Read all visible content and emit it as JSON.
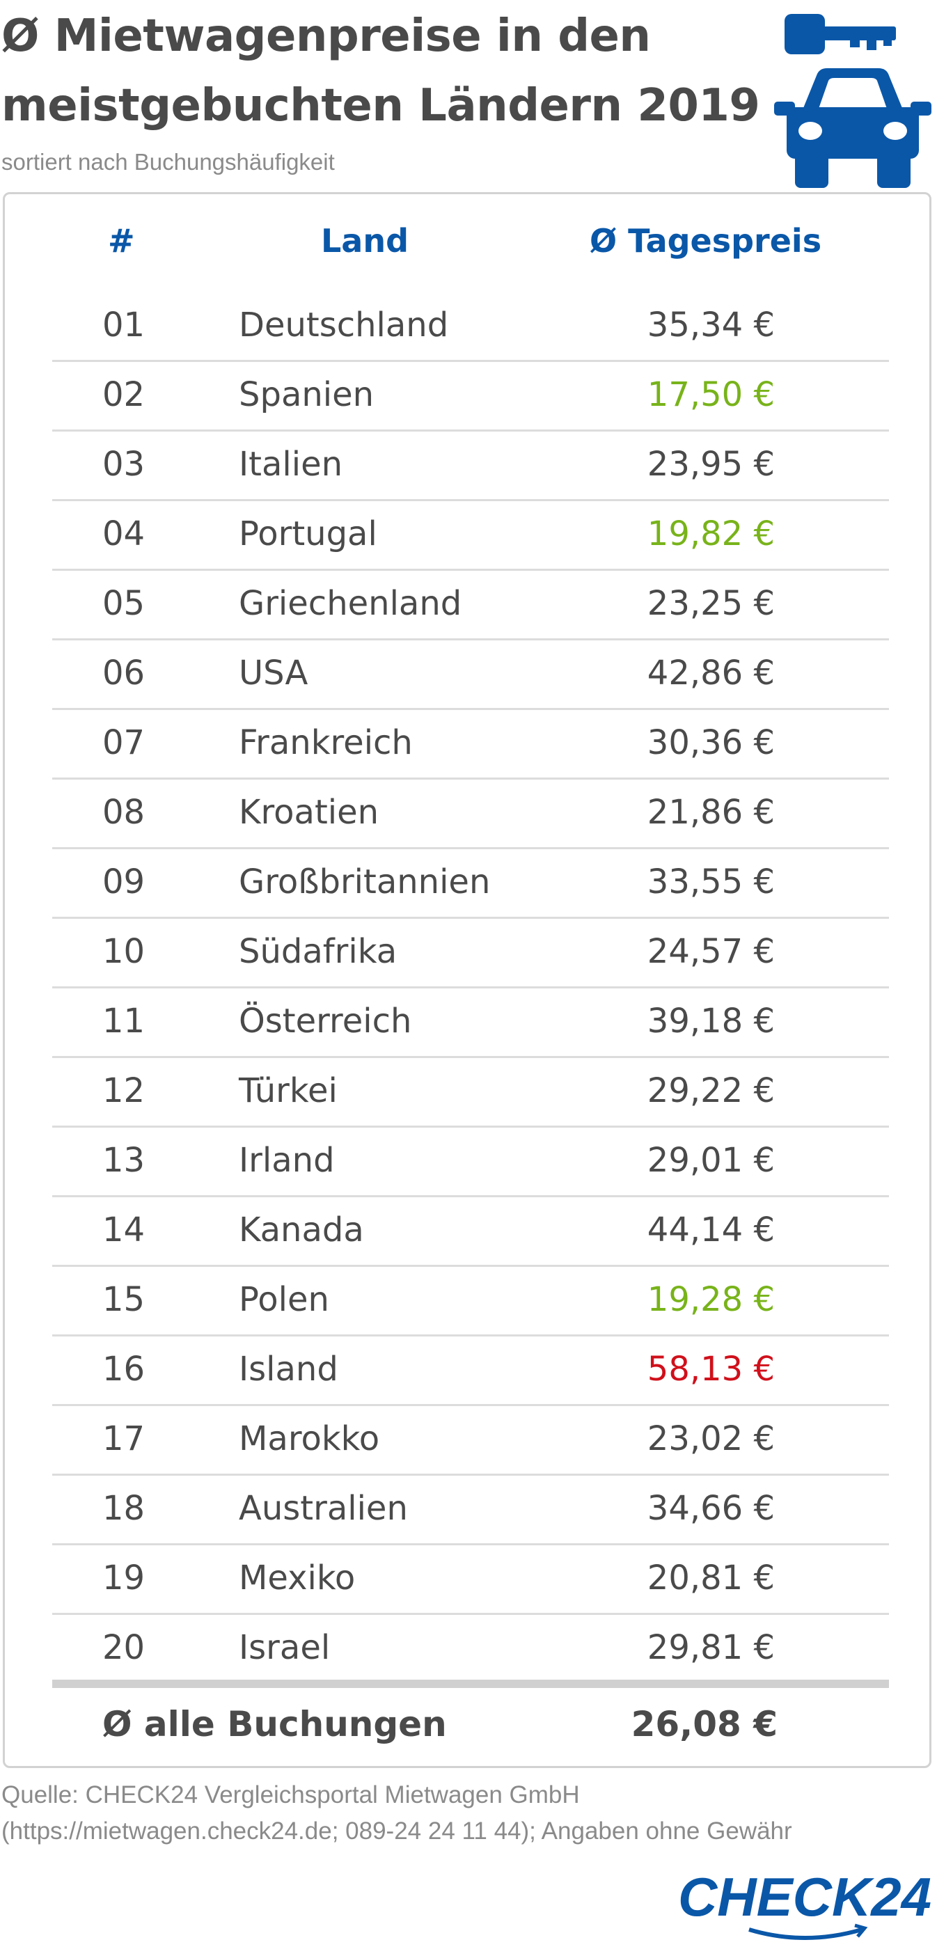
{
  "title_line1": "Ø Mietwagenpreise in den",
  "title_line2": "meistgebuchten Ländern 2019",
  "subtitle": "sortiert nach Buchungshäufigkeit",
  "icons": [
    "key-icon",
    "car-icon"
  ],
  "colors": {
    "accent": "#0a57a8",
    "cheap": "#78b31a",
    "expensive": "#d0101b",
    "text": "#4a4a4a"
  },
  "table": {
    "headers": {
      "num": "#",
      "land": "Land",
      "price": "Ø Tagespreis"
    },
    "rows": [
      {
        "num": "01",
        "land": "Deutschland",
        "price": "35,34 €",
        "highlight": "none"
      },
      {
        "num": "02",
        "land": "Spanien",
        "price": "17,50 €",
        "highlight": "cheap"
      },
      {
        "num": "03",
        "land": "Italien",
        "price": "23,95 €",
        "highlight": "none"
      },
      {
        "num": "04",
        "land": "Portugal",
        "price": "19,82 €",
        "highlight": "cheap"
      },
      {
        "num": "05",
        "land": "Griechenland",
        "price": "23,25 €",
        "highlight": "none"
      },
      {
        "num": "06",
        "land": "USA",
        "price": "42,86 €",
        "highlight": "none"
      },
      {
        "num": "07",
        "land": "Frankreich",
        "price": "30,36 €",
        "highlight": "none"
      },
      {
        "num": "08",
        "land": "Kroatien",
        "price": "21,86 €",
        "highlight": "none"
      },
      {
        "num": "09",
        "land": "Großbritannien",
        "price": "33,55 €",
        "highlight": "none"
      },
      {
        "num": "10",
        "land": "Südafrika",
        "price": "24,57 €",
        "highlight": "none"
      },
      {
        "num": "11",
        "land": "Österreich",
        "price": "39,18 €",
        "highlight": "none"
      },
      {
        "num": "12",
        "land": "Türkei",
        "price": "29,22 €",
        "highlight": "none"
      },
      {
        "num": "13",
        "land": "Irland",
        "price": "29,01 €",
        "highlight": "none"
      },
      {
        "num": "14",
        "land": "Kanada",
        "price": "44,14 €",
        "highlight": "none"
      },
      {
        "num": "15",
        "land": "Polen",
        "price": "19,28 €",
        "highlight": "cheap"
      },
      {
        "num": "16",
        "land": "Island",
        "price": "58,13 €",
        "highlight": "expensive"
      },
      {
        "num": "17",
        "land": "Marokko",
        "price": "23,02 €",
        "highlight": "none"
      },
      {
        "num": "18",
        "land": "Australien",
        "price": "34,66 €",
        "highlight": "none"
      },
      {
        "num": "19",
        "land": "Mexiko",
        "price": "20,81 €",
        "highlight": "none"
      },
      {
        "num": "20",
        "land": "Israel",
        "price": "29,81 €",
        "highlight": "none"
      }
    ],
    "total": {
      "label": "Ø alle Buchungen",
      "price": "26,08 €"
    }
  },
  "source_line1": "Quelle: CHECK24 Vergleichsportal Mietwagen GmbH",
  "source_line2": "(https://mietwagen.check24.de; 089-24 24 11 44); Angaben ohne Gewähr",
  "logo_text": "CHECK24"
}
